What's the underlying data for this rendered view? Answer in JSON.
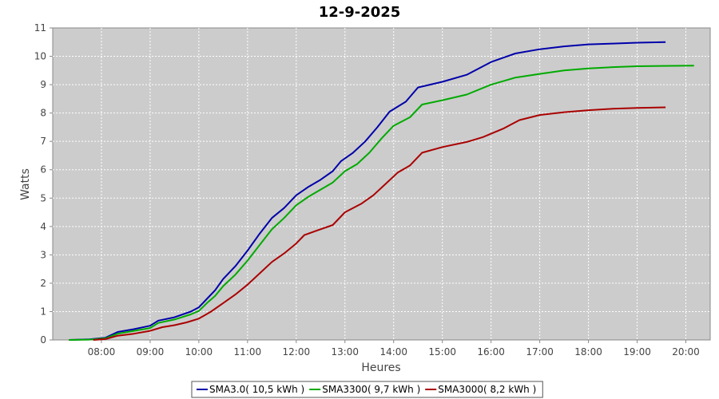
{
  "chart_data": {
    "type": "line",
    "title": "12-9-2025",
    "xlabel": "Heures",
    "ylabel": "Watts",
    "x_unit": "hours of day",
    "xlim": [
      "07:00",
      "20:30"
    ],
    "ylim": [
      0,
      11
    ],
    "x_ticks": [
      "08:00",
      "09:00",
      "10:00",
      "11:00",
      "12:00",
      "13:00",
      "14:00",
      "15:00",
      "16:00",
      "17:00",
      "18:00",
      "19:00",
      "20:00"
    ],
    "y_ticks": [
      0,
      1,
      2,
      3,
      4,
      5,
      6,
      7,
      8,
      9,
      10,
      11
    ],
    "grid": true,
    "legend_position": "bottom-center",
    "series": [
      {
        "name": "SMA3.0( 10,5 kWh )",
        "color": "#0000aa",
        "points": [
          [
            "07:20",
            0.0
          ],
          [
            "07:45",
            0.02
          ],
          [
            "08:05",
            0.08
          ],
          [
            "08:20",
            0.28
          ],
          [
            "08:40",
            0.38
          ],
          [
            "09:00",
            0.5
          ],
          [
            "09:10",
            0.68
          ],
          [
            "09:30",
            0.8
          ],
          [
            "09:50",
            1.0
          ],
          [
            "10:00",
            1.15
          ],
          [
            "10:10",
            1.45
          ],
          [
            "10:20",
            1.75
          ],
          [
            "10:30",
            2.15
          ],
          [
            "10:45",
            2.6
          ],
          [
            "11:00",
            3.15
          ],
          [
            "11:15",
            3.75
          ],
          [
            "11:30",
            4.3
          ],
          [
            "11:45",
            4.65
          ],
          [
            "12:00",
            5.1
          ],
          [
            "12:15",
            5.4
          ],
          [
            "12:30",
            5.65
          ],
          [
            "12:45",
            5.95
          ],
          [
            "12:55",
            6.3
          ],
          [
            "13:10",
            6.6
          ],
          [
            "13:25",
            7.0
          ],
          [
            "13:40",
            7.5
          ],
          [
            "13:55",
            8.05
          ],
          [
            "14:15",
            8.4
          ],
          [
            "14:30",
            8.9
          ],
          [
            "15:00",
            9.1
          ],
          [
            "15:30",
            9.35
          ],
          [
            "16:00",
            9.8
          ],
          [
            "16:30",
            10.1
          ],
          [
            "17:00",
            10.25
          ],
          [
            "17:30",
            10.35
          ],
          [
            "18:00",
            10.42
          ],
          [
            "18:30",
            10.45
          ],
          [
            "19:00",
            10.48
          ],
          [
            "19:35",
            10.5
          ]
        ]
      },
      {
        "name": "SMA3300( 9,7 kWh )",
        "color": "#00aa00",
        "points": [
          [
            "07:20",
            0.0
          ],
          [
            "07:45",
            0.01
          ],
          [
            "08:05",
            0.06
          ],
          [
            "08:20",
            0.22
          ],
          [
            "08:40",
            0.32
          ],
          [
            "09:00",
            0.42
          ],
          [
            "09:10",
            0.6
          ],
          [
            "09:30",
            0.72
          ],
          [
            "09:50",
            0.9
          ],
          [
            "10:00",
            1.02
          ],
          [
            "10:10",
            1.3
          ],
          [
            "10:20",
            1.55
          ],
          [
            "10:30",
            1.9
          ],
          [
            "10:45",
            2.3
          ],
          [
            "11:00",
            2.8
          ],
          [
            "11:15",
            3.35
          ],
          [
            "11:30",
            3.9
          ],
          [
            "11:45",
            4.3
          ],
          [
            "12:00",
            4.75
          ],
          [
            "12:15",
            5.05
          ],
          [
            "12:30",
            5.3
          ],
          [
            "12:45",
            5.55
          ],
          [
            "13:00",
            5.95
          ],
          [
            "13:15",
            6.2
          ],
          [
            "13:30",
            6.6
          ],
          [
            "13:45",
            7.1
          ],
          [
            "14:00",
            7.55
          ],
          [
            "14:20",
            7.85
          ],
          [
            "14:35",
            8.3
          ],
          [
            "15:00",
            8.45
          ],
          [
            "15:30",
            8.65
          ],
          [
            "16:00",
            9.0
          ],
          [
            "16:30",
            9.25
          ],
          [
            "17:00",
            9.38
          ],
          [
            "17:30",
            9.5
          ],
          [
            "18:00",
            9.57
          ],
          [
            "18:30",
            9.62
          ],
          [
            "19:00",
            9.65
          ],
          [
            "19:30",
            9.66
          ],
          [
            "20:10",
            9.67
          ]
        ]
      },
      {
        "name": "SMA3000( 8,2 kWh )",
        "color": "#aa0000",
        "points": [
          [
            "07:50",
            0.0
          ],
          [
            "08:05",
            0.03
          ],
          [
            "08:20",
            0.15
          ],
          [
            "08:40",
            0.22
          ],
          [
            "09:00",
            0.32
          ],
          [
            "09:15",
            0.45
          ],
          [
            "09:30",
            0.52
          ],
          [
            "09:45",
            0.62
          ],
          [
            "10:00",
            0.75
          ],
          [
            "10:15",
            1.0
          ],
          [
            "10:30",
            1.3
          ],
          [
            "10:45",
            1.6
          ],
          [
            "11:00",
            1.95
          ],
          [
            "11:15",
            2.35
          ],
          [
            "11:30",
            2.75
          ],
          [
            "11:45",
            3.05
          ],
          [
            "12:00",
            3.4
          ],
          [
            "12:10",
            3.7
          ],
          [
            "12:25",
            3.85
          ],
          [
            "12:45",
            4.05
          ],
          [
            "13:00",
            4.5
          ],
          [
            "13:20",
            4.8
          ],
          [
            "13:35",
            5.1
          ],
          [
            "13:50",
            5.5
          ],
          [
            "14:05",
            5.9
          ],
          [
            "14:20",
            6.15
          ],
          [
            "14:35",
            6.6
          ],
          [
            "15:00",
            6.8
          ],
          [
            "15:30",
            6.98
          ],
          [
            "15:50",
            7.15
          ],
          [
            "16:15",
            7.45
          ],
          [
            "16:35",
            7.75
          ],
          [
            "17:00",
            7.93
          ],
          [
            "17:30",
            8.03
          ],
          [
            "18:00",
            8.1
          ],
          [
            "18:30",
            8.15
          ],
          [
            "19:00",
            8.18
          ],
          [
            "19:35",
            8.2
          ]
        ]
      }
    ]
  }
}
